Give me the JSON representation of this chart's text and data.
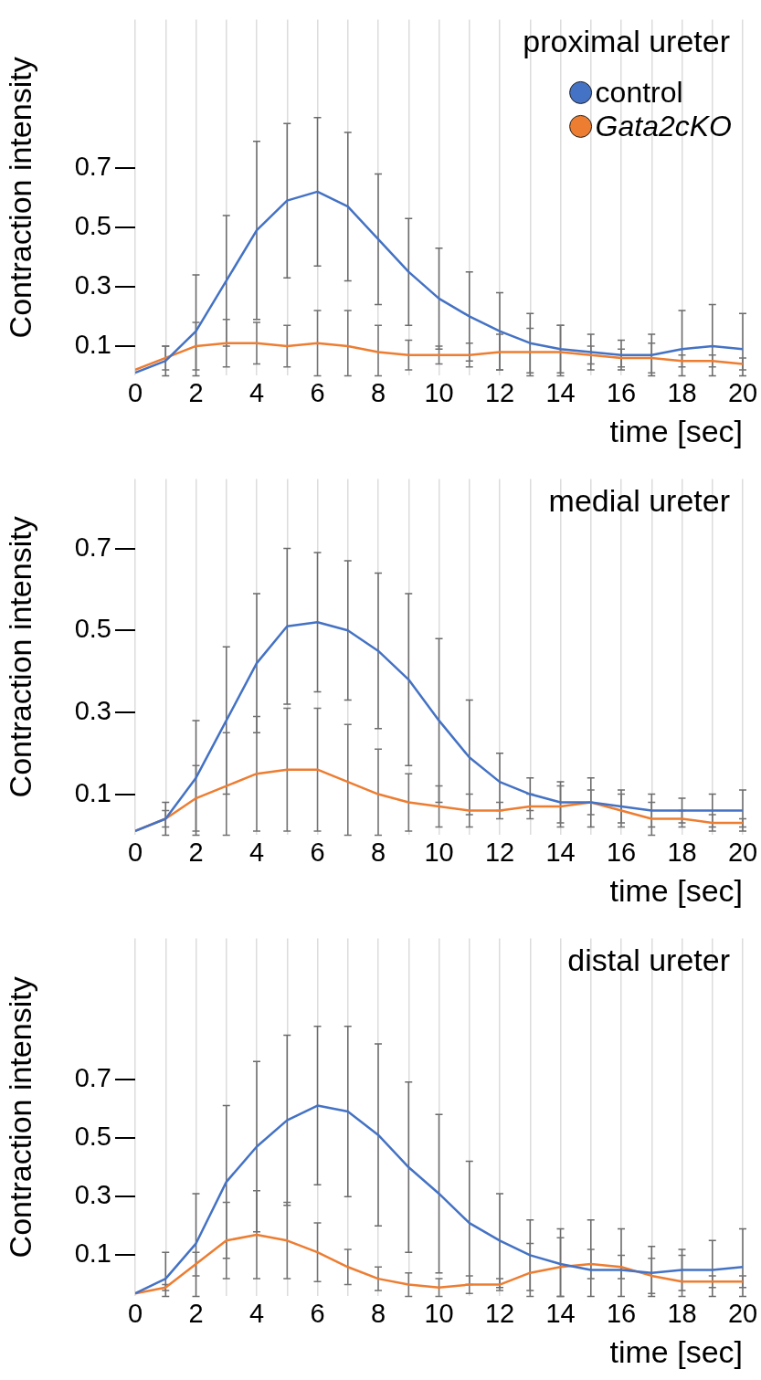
{
  "chart_data": [
    {
      "type": "line",
      "title": "proximal ureter",
      "xlabel": "time [sec]",
      "ylabel": "Contraction intensity",
      "legend": "top right",
      "grid": "x",
      "marker": "none",
      "x": [
        0,
        1,
        2,
        3,
        4,
        5,
        6,
        7,
        8,
        9,
        10,
        11,
        12,
        13,
        14,
        15,
        16,
        17,
        18,
        19,
        20
      ],
      "xlim": [
        0,
        20
      ],
      "xticks": [
        0,
        {
          "value": 1,
          "label": null
        },
        2,
        {
          "value": 3,
          "label": null
        },
        4,
        {
          "value": 5,
          "label": null
        },
        6,
        {
          "value": 7,
          "label": null
        },
        8,
        {
          "value": 9,
          "label": null
        },
        10,
        {
          "value": 11,
          "label": null
        },
        12,
        {
          "value": 13,
          "label": null
        },
        14,
        {
          "value": 15,
          "label": null
        },
        16,
        {
          "value": 17,
          "label": null
        },
        18,
        {
          "value": 19,
          "label": null
        },
        20
      ],
      "ylim": [
        0,
        1.2
      ],
      "yticks": [
        0.1,
        0.3,
        0.5,
        0.7
      ],
      "series": [
        {
          "name": "control",
          "color": "#4472c4",
          "values": [
            0.01,
            0.05,
            0.15,
            0.32,
            0.49,
            0.59,
            0.62,
            0.57,
            0.46,
            0.35,
            0.26,
            0.2,
            0.15,
            0.11,
            0.09,
            0.08,
            0.07,
            0.07,
            0.09,
            0.1,
            0.09
          ],
          "errors": [
            null,
            0.05,
            [
              0,
              0.34
            ],
            0.22,
            0.3,
            0.26,
            0.25,
            0.25,
            0.22,
            0.18,
            0.17,
            0.15,
            0.13,
            0.1,
            0.08,
            0.06,
            0.05,
            0.07,
            [
              0,
              0.22
            ],
            [
              0,
              0.24
            ],
            [
              0,
              0.21
            ]
          ]
        },
        {
          "name": "Gata2cKO",
          "color": "#ed7d31",
          "values": [
            0.02,
            0.06,
            0.1,
            0.11,
            0.11,
            0.1,
            0.11,
            0.1,
            0.08,
            0.07,
            0.07,
            0.07,
            0.08,
            0.08,
            0.08,
            0.07,
            0.06,
            0.06,
            0.05,
            0.05,
            0.04
          ],
          "errors": [
            null,
            0.04,
            0.08,
            0.08,
            0.07,
            0.07,
            0.11,
            [
              0,
              0.22
            ],
            [
              0,
              0.17
            ],
            0.05,
            0.03,
            0.04,
            0.06,
            0.08,
            [
              0,
              0.17
            ],
            0.03,
            0.03,
            0.05,
            0.02,
            0.02,
            0.02
          ]
        }
      ]
    },
    {
      "type": "line",
      "title": "medial ureter",
      "xlabel": "time [sec]",
      "ylabel": "Contraction intensity",
      "grid": "x",
      "marker": "none",
      "x": [
        0,
        1,
        2,
        3,
        4,
        5,
        6,
        7,
        8,
        9,
        10,
        11,
        12,
        13,
        14,
        15,
        16,
        17,
        18,
        19,
        20
      ],
      "xlim": [
        0,
        20
      ],
      "xticks": [
        0,
        {
          "value": 1,
          "label": null
        },
        2,
        {
          "value": 3,
          "label": null
        },
        4,
        {
          "value": 5,
          "label": null
        },
        6,
        {
          "value": 7,
          "label": null
        },
        8,
        {
          "value": 9,
          "label": null
        },
        10,
        {
          "value": 11,
          "label": null
        },
        12,
        {
          "value": 13,
          "label": null
        },
        14,
        {
          "value": 15,
          "label": null
        },
        16,
        {
          "value": 17,
          "label": null
        },
        18,
        {
          "value": 19,
          "label": null
        },
        20
      ],
      "ylim": [
        0,
        0.87
      ],
      "yticks": [
        0.1,
        0.3,
        0.5,
        0.7
      ],
      "series": [
        {
          "color": "#4472c4",
          "values": [
            0.01,
            0.04,
            0.14,
            0.28,
            0.42,
            0.51,
            0.52,
            0.5,
            0.45,
            0.38,
            0.28,
            0.19,
            0.13,
            0.1,
            0.08,
            0.08,
            0.07,
            0.06,
            0.06,
            0.06,
            0.06
          ],
          "errors": [
            null,
            0.04,
            0.14,
            0.18,
            0.17,
            0.19,
            0.17,
            0.17,
            0.19,
            0.21,
            0.2,
            0.14,
            0.07,
            0.04,
            0.05,
            0.06,
            0.04,
            0.04,
            0.03,
            0.04,
            0.05
          ]
        },
        {
          "color": "#ed7d31",
          "values": [
            0.01,
            0.04,
            0.09,
            0.12,
            0.15,
            0.16,
            0.16,
            0.13,
            0.1,
            0.08,
            0.07,
            0.06,
            0.06,
            0.07,
            0.07,
            0.08,
            0.06,
            0.04,
            0.04,
            0.03,
            0.03
          ],
          "errors": [
            null,
            0.02,
            0.08,
            [
              0,
              0.25
            ],
            0.14,
            0.15,
            0.15,
            [
              0,
              0.27
            ],
            [
              0,
              0.21
            ],
            0.07,
            0.05,
            0.04,
            0.02,
            0.03,
            0.05,
            0.03,
            0.04,
            0.04,
            0.02,
            0.02,
            0.01
          ]
        }
      ]
    },
    {
      "type": "line",
      "title": "distal ureter",
      "xlabel": "time [sec]",
      "ylabel": "Contraction intensity",
      "grid": "x",
      "marker": "none",
      "x": [
        0,
        1,
        2,
        3,
        4,
        5,
        6,
        7,
        8,
        9,
        10,
        11,
        12,
        13,
        14,
        15,
        16,
        17,
        18,
        19,
        20
      ],
      "xlim": [
        0,
        20
      ],
      "xticks": [
        0,
        {
          "value": 1,
          "label": null
        },
        2,
        {
          "value": 3,
          "label": null
        },
        4,
        {
          "value": 5,
          "label": null
        },
        6,
        {
          "value": 7,
          "label": null
        },
        8,
        {
          "value": 9,
          "label": null
        },
        10,
        {
          "value": 11,
          "label": null
        },
        12,
        {
          "value": 13,
          "label": null
        },
        14,
        {
          "value": 15,
          "label": null
        },
        16,
        {
          "value": 17,
          "label": null
        },
        18,
        {
          "value": 19,
          "label": null
        },
        20
      ],
      "ylim": [
        -0.04,
        1.18
      ],
      "yticks": [
        0.1,
        0.3,
        0.5,
        0.7
      ],
      "series": [
        {
          "color": "#4472c4",
          "values": [
            -0.03,
            0.02,
            0.14,
            0.35,
            0.47,
            0.56,
            0.61,
            0.59,
            0.51,
            0.4,
            0.31,
            0.21,
            0.15,
            0.1,
            0.07,
            0.05,
            0.05,
            0.04,
            0.05,
            0.05,
            0.06
          ],
          "errors": [
            null,
            [
              -0.04,
              0.11
            ],
            [
              -0.04,
              0.31
            ],
            0.26,
            0.29,
            0.29,
            0.27,
            0.29,
            0.31,
            0.29,
            0.27,
            0.21,
            0.16,
            0.12,
            [
              -0.04,
              0.19
            ],
            [
              -0.04,
              0.22
            ],
            [
              -0.04,
              0.19
            ],
            [
              -0.04,
              0.13
            ],
            0.07,
            [
              -0.04,
              0.15
            ],
            [
              -0.04,
              0.19
            ]
          ]
        },
        {
          "color": "#ed7d31",
          "values": [
            -0.03,
            -0.01,
            0.07,
            0.15,
            0.17,
            0.15,
            0.11,
            0.06,
            0.02,
            0.0,
            -0.01,
            0.0,
            0.0,
            0.04,
            0.06,
            0.07,
            0.06,
            0.03,
            0.01,
            0.01,
            0.01
          ],
          "errors": [
            null,
            0.01,
            0.04,
            0.13,
            0.15,
            0.13,
            0.1,
            0.06,
            0.04,
            0.04,
            0.03,
            0.03,
            0.02,
            [
              -0.04,
              0.14
            ],
            [
              -0.04,
              0.16
            ],
            0.05,
            0.04,
            0.06,
            [
              -0.04,
              0.1
            ],
            0.02,
            0.02
          ]
        }
      ]
    }
  ]
}
